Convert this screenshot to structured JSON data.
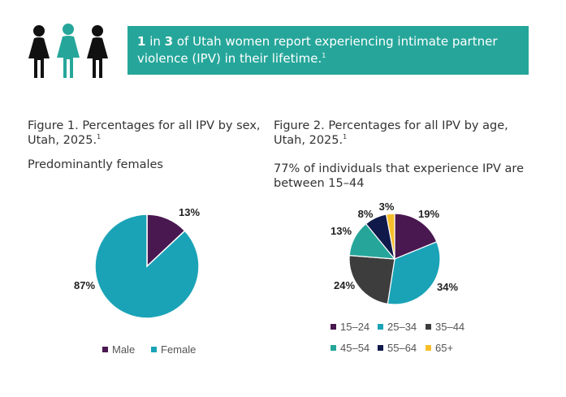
{
  "banner": {
    "num1": "1",
    "mid": " in ",
    "num2": "3",
    "text": " of Utah women report experiencing intimate partner violence (IPV) in their lifetime.",
    "ref": "1"
  },
  "icons": [
    "woman-silhouette-icon",
    "woman-silhouette-icon",
    "woman-silhouette-icon"
  ],
  "colors": {
    "banner": "#26a69a",
    "female": "#1aa3b7",
    "male": "#4a1850",
    "age_15_24": "#4a1850",
    "age_25_34": "#1aa3b7",
    "age_35_44": "#3d3d3d",
    "age_45_54": "#26a69a",
    "age_55_64": "#0f1a4a",
    "age_65_plus": "#f6be2a"
  },
  "figure1": {
    "title": "Figure 1. Percentages for all IPV by sex, Utah, 2025.",
    "ref": "1",
    "subtitle": "Predominantly females"
  },
  "figure2": {
    "title": "Figure 2. Percentages for all IPV by age, Utah, 2025.",
    "ref": "1",
    "subtitle": "77% of individuals that experience IPV are between 15–44"
  },
  "chart_data": [
    {
      "type": "pie",
      "categories": [
        "Male",
        "Female"
      ],
      "values": [
        13,
        87
      ],
      "labels": [
        "13%",
        "87%"
      ],
      "legend": "bottom"
    },
    {
      "type": "pie",
      "categories": [
        "15–24",
        "25–34",
        "35–44",
        "45–54",
        "55–64",
        "65+"
      ],
      "values": [
        19,
        34,
        24,
        13,
        8,
        3
      ],
      "labels": [
        "19%",
        "34%",
        "24%",
        "13%",
        "8%",
        "3%"
      ],
      "legend": "bottom"
    }
  ]
}
